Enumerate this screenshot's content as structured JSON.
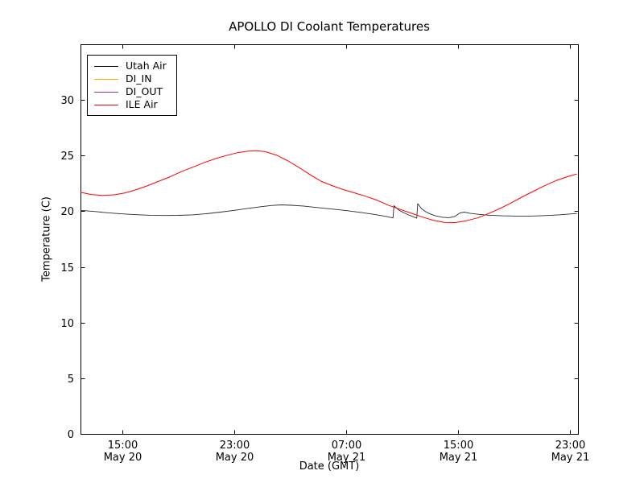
{
  "chart_data": {
    "type": "line",
    "title": "APOLLO DI Coolant Temperatures",
    "xlabel": "Date (GMT)",
    "ylabel": "Temperature (C)",
    "ylim": [
      0,
      35
    ],
    "yticks": [
      0,
      5,
      10,
      15,
      20,
      25,
      30
    ],
    "grid": false,
    "x_axis": {
      "unit": "hours since May 20 00:00 GMT",
      "range": [
        12.0,
        47.58
      ],
      "ticks": [
        {
          "hour": 15,
          "time": "15:00",
          "date": "May 20"
        },
        {
          "hour": 23,
          "time": "23:00",
          "date": "May 20"
        },
        {
          "hour": 31,
          "time": "07:00",
          "date": "May 21"
        },
        {
          "hour": 39,
          "time": "15:00",
          "date": "May 21"
        },
        {
          "hour": 47,
          "time": "23:00",
          "date": "May 21"
        }
      ]
    },
    "legend": {
      "position": "upper left",
      "entries": [
        {
          "label": "Utah Air",
          "color": "#000000"
        },
        {
          "label": "DI_IN",
          "color": "#ffa500"
        },
        {
          "label": "DI_OUT",
          "color": "#993399"
        },
        {
          "label": "ILE Air",
          "color": "#ff0000"
        }
      ]
    },
    "series": [
      {
        "name": "Utah Air",
        "color": "#2a2a2a",
        "points": [
          [
            12,
            20.08
          ],
          [
            13,
            19.98
          ],
          [
            14,
            19.86
          ],
          [
            15,
            19.76
          ],
          [
            16,
            19.69
          ],
          [
            17,
            19.64
          ],
          [
            18,
            19.62
          ],
          [
            19,
            19.63
          ],
          [
            20,
            19.68
          ],
          [
            21,
            19.78
          ],
          [
            22,
            19.92
          ],
          [
            23,
            20.08
          ],
          [
            24,
            20.26
          ],
          [
            25,
            20.42
          ],
          [
            25.7,
            20.52
          ],
          [
            26.4,
            20.57
          ],
          [
            27.1,
            20.54
          ],
          [
            28,
            20.46
          ],
          [
            29,
            20.33
          ],
          [
            30,
            20.2
          ],
          [
            31,
            20.06
          ],
          [
            32,
            19.9
          ],
          [
            33,
            19.72
          ],
          [
            33.8,
            19.55
          ],
          [
            34.35,
            19.4
          ],
          [
            34.42,
            20.5
          ],
          [
            34.75,
            20.12
          ],
          [
            35.1,
            19.88
          ],
          [
            35.45,
            19.68
          ],
          [
            35.8,
            19.5
          ],
          [
            36.05,
            19.38
          ],
          [
            36.12,
            20.68
          ],
          [
            36.4,
            20.22
          ],
          [
            36.7,
            19.95
          ],
          [
            37,
            19.76
          ],
          [
            37.4,
            19.58
          ],
          [
            37.9,
            19.46
          ],
          [
            38.35,
            19.42
          ],
          [
            38.75,
            19.52
          ],
          [
            39.15,
            19.86
          ],
          [
            39.45,
            19.92
          ],
          [
            39.85,
            19.82
          ],
          [
            40.5,
            19.72
          ],
          [
            41.3,
            19.64
          ],
          [
            42.2,
            19.59
          ],
          [
            43.2,
            19.57
          ],
          [
            44.2,
            19.57
          ],
          [
            45.2,
            19.61
          ],
          [
            46.2,
            19.68
          ],
          [
            47.5,
            19.8
          ]
        ]
      },
      {
        "name": "DI_IN",
        "color": "#ffa500",
        "points": []
      },
      {
        "name": "DI_OUT",
        "color": "#993399",
        "points": []
      },
      {
        "name": "ILE Air",
        "color": "#ff0000",
        "points": [
          [
            12,
            21.7
          ],
          [
            12.8,
            21.5
          ],
          [
            13.6,
            21.42
          ],
          [
            14.4,
            21.48
          ],
          [
            15.2,
            21.65
          ],
          [
            16,
            21.95
          ],
          [
            16.8,
            22.3
          ],
          [
            17.6,
            22.7
          ],
          [
            18.4,
            23.1
          ],
          [
            19.2,
            23.55
          ],
          [
            20,
            23.95
          ],
          [
            20.8,
            24.35
          ],
          [
            21.6,
            24.7
          ],
          [
            22.4,
            25.0
          ],
          [
            23.2,
            25.25
          ],
          [
            24,
            25.4
          ],
          [
            24.6,
            25.43
          ],
          [
            25.2,
            25.35
          ],
          [
            26,
            25.05
          ],
          [
            26.8,
            24.55
          ],
          [
            27.6,
            23.95
          ],
          [
            28.4,
            23.3
          ],
          [
            29.2,
            22.7
          ],
          [
            30,
            22.3
          ],
          [
            30.8,
            21.95
          ],
          [
            31.6,
            21.65
          ],
          [
            32.4,
            21.35
          ],
          [
            33.2,
            21.0
          ],
          [
            34,
            20.55
          ],
          [
            34.8,
            20.2
          ],
          [
            35.6,
            19.85
          ],
          [
            36.4,
            19.5
          ],
          [
            37.2,
            19.2
          ],
          [
            38,
            19.0
          ],
          [
            38.8,
            18.98
          ],
          [
            39.6,
            19.15
          ],
          [
            40.4,
            19.4
          ],
          [
            41.2,
            19.8
          ],
          [
            42,
            20.25
          ],
          [
            42.8,
            20.75
          ],
          [
            43.6,
            21.3
          ],
          [
            44.4,
            21.8
          ],
          [
            45.2,
            22.3
          ],
          [
            46,
            22.75
          ],
          [
            46.8,
            23.1
          ],
          [
            47.5,
            23.35
          ]
        ]
      }
    ]
  }
}
